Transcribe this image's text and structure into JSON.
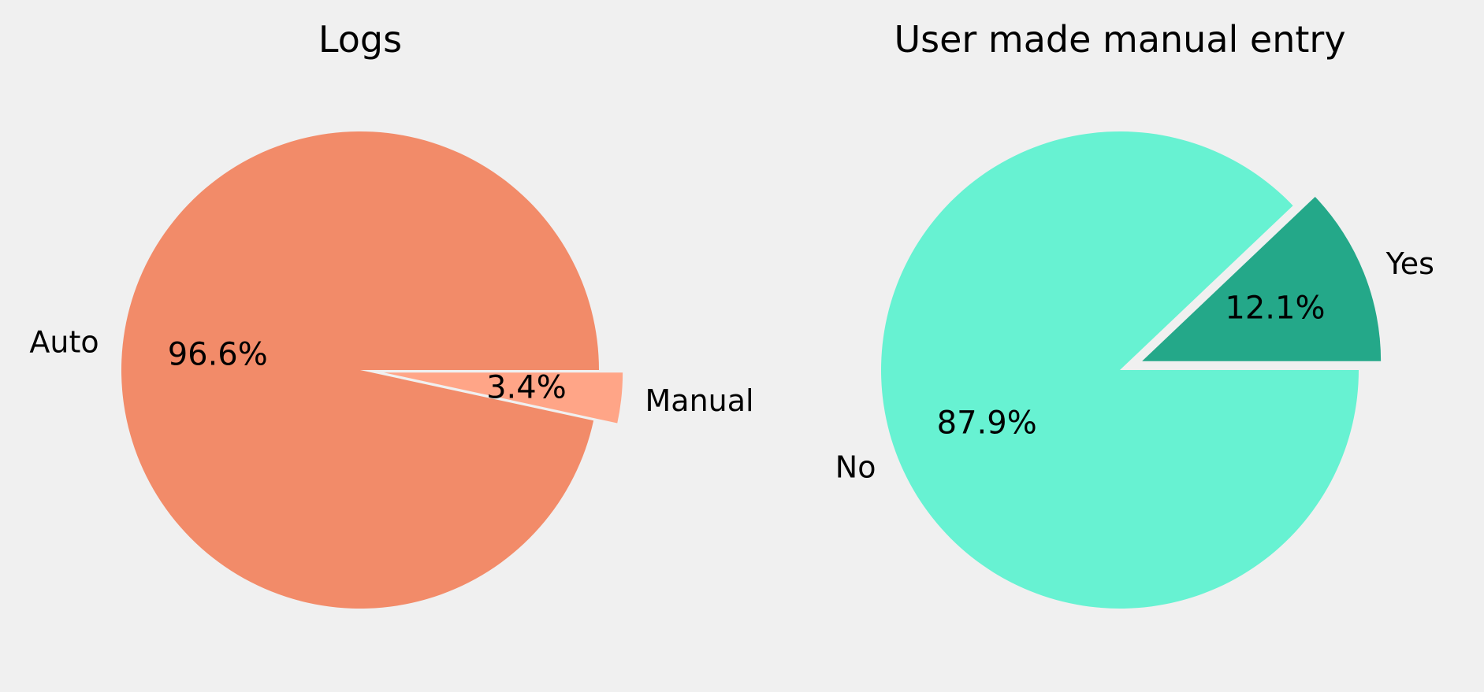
{
  "chart_data": [
    {
      "type": "pie",
      "title": "Logs",
      "slices": [
        {
          "label": "Auto",
          "value": 96.6,
          "pct_text": "96.6%",
          "color": "#f28b69",
          "exploded": false
        },
        {
          "label": "Manual",
          "value": 3.4,
          "pct_text": "3.4%",
          "color": "#ffa587",
          "exploded": true
        }
      ],
      "start_angle_deg": 0,
      "direction": "counterclockwise"
    },
    {
      "type": "pie",
      "title": "User made manual entry",
      "slices": [
        {
          "label": "Yes",
          "value": 12.1,
          "pct_text": "12.1%",
          "color": "#24a889",
          "exploded": true
        },
        {
          "label": "No",
          "value": 87.9,
          "pct_text": "87.9%",
          "color": "#67f2d2",
          "exploded": false
        }
      ],
      "start_angle_deg": 0,
      "direction": "counterclockwise"
    }
  ],
  "background_color": "#f0f0f0"
}
